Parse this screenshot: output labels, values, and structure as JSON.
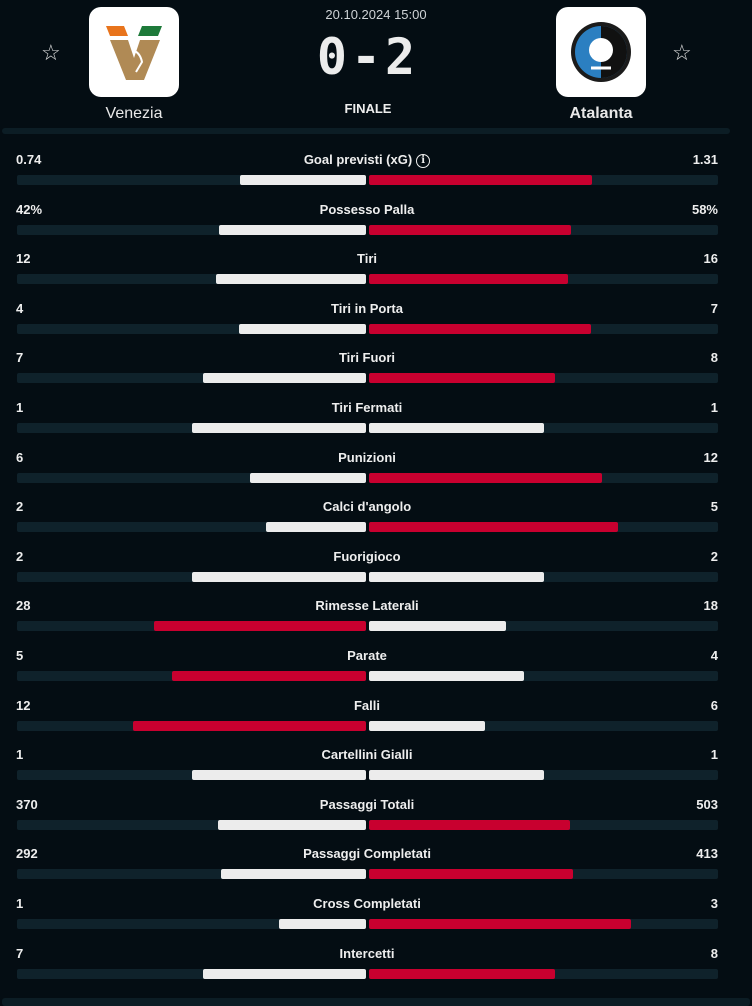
{
  "match": {
    "date": "20.10.2024 15:00",
    "score": "0-2",
    "status": "FINALE",
    "home": {
      "name": "Venezia"
    },
    "away": {
      "name": "Atalanta"
    }
  },
  "colors": {
    "leader": "#c8002f",
    "other": "#ececec",
    "track": "#0f222b"
  },
  "stats": [
    {
      "label": "Goal previsti (xG)",
      "home": "0.74",
      "away": "1.31",
      "info": true
    },
    {
      "label": "Possesso Palla",
      "home": "42%",
      "away": "58%"
    },
    {
      "label": "Tiri",
      "home": "12",
      "away": "16"
    },
    {
      "label": "Tiri in Porta",
      "home": "4",
      "away": "7"
    },
    {
      "label": "Tiri Fuori",
      "home": "7",
      "away": "8"
    },
    {
      "label": "Tiri Fermati",
      "home": "1",
      "away": "1"
    },
    {
      "label": "Punizioni",
      "home": "6",
      "away": "12"
    },
    {
      "label": "Calci d'angolo",
      "home": "2",
      "away": "5"
    },
    {
      "label": "Fuorigioco",
      "home": "2",
      "away": "2"
    },
    {
      "label": "Rimesse Laterali",
      "home": "28",
      "away": "18"
    },
    {
      "label": "Parate",
      "home": "5",
      "away": "4"
    },
    {
      "label": "Falli",
      "home": "12",
      "away": "6"
    },
    {
      "label": "Cartellini Gialli",
      "home": "1",
      "away": "1"
    },
    {
      "label": "Passaggi Totali",
      "home": "370",
      "away": "503"
    },
    {
      "label": "Passaggi Completati",
      "home": "292",
      "away": "413"
    },
    {
      "label": "Cross Completati",
      "home": "1",
      "away": "3"
    },
    {
      "label": "Intercetti",
      "home": "7",
      "away": "8"
    }
  ]
}
